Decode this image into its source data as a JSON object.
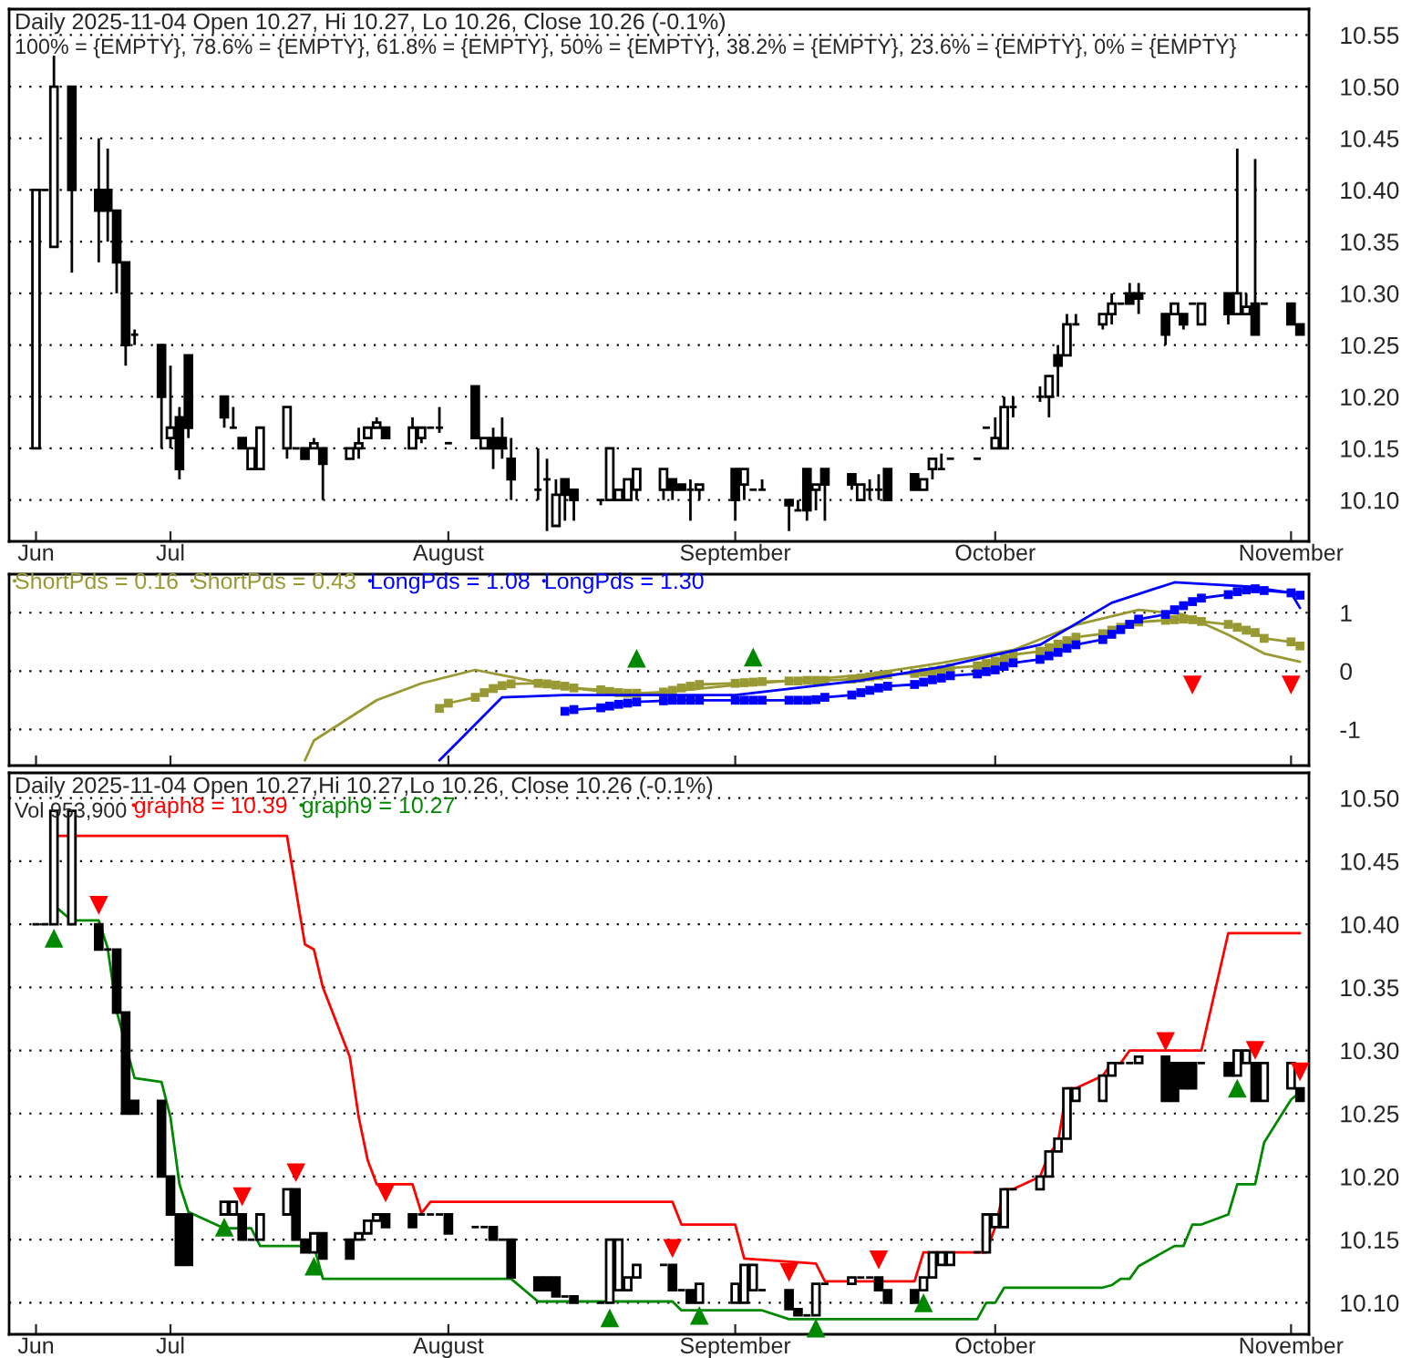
{
  "chart_data": [
    {
      "type": "candlestick",
      "title": "Daily 2025-11-04 Open 10.27, Hi 10.27, Lo 10.26, Close 10.26 (-0.1%)",
      "annotations": [
        "100% = {EMPTY}, 78.6% = {EMPTY}, 61.8% = {EMPTY}, 50% = {EMPTY}, 38.2% = {EMPTY}, 23.6% = {EMPTY}, 0% = {EMPTY}"
      ],
      "x": [
        "2025-06-16",
        "2025-06-17",
        "2025-06-18",
        "2025-06-20",
        "2025-06-23",
        "2025-06-24",
        "2025-06-25",
        "2025-06-26",
        "2025-06-27",
        "2025-06-30",
        "2025-07-01",
        "2025-07-02",
        "2025-07-03",
        "2025-07-07",
        "2025-07-08",
        "2025-07-09",
        "2025-07-10",
        "2025-07-11",
        "2025-07-14",
        "2025-07-15",
        "2025-07-16",
        "2025-07-17",
        "2025-07-18",
        "2025-07-21",
        "2025-07-22",
        "2025-07-23",
        "2025-07-24",
        "2025-07-25",
        "2025-07-28",
        "2025-07-29",
        "2025-07-30",
        "2025-07-31",
        "2025-08-01",
        "2025-08-04",
        "2025-08-05",
        "2025-08-06",
        "2025-08-07",
        "2025-08-08",
        "2025-08-11",
        "2025-08-12",
        "2025-08-13",
        "2025-08-14",
        "2025-08-15",
        "2025-08-18",
        "2025-08-19",
        "2025-08-20",
        "2025-08-21",
        "2025-08-22",
        "2025-08-25",
        "2025-08-26",
        "2025-08-27",
        "2025-08-28",
        "2025-08-29",
        "2025-09-02",
        "2025-09-03",
        "2025-09-04",
        "2025-09-05",
        "2025-09-08",
        "2025-09-09",
        "2025-09-10",
        "2025-09-11",
        "2025-09-12",
        "2025-09-15",
        "2025-09-16",
        "2025-09-17",
        "2025-09-18",
        "2025-09-19",
        "2025-09-22",
        "2025-09-23",
        "2025-09-24",
        "2025-09-25",
        "2025-09-26",
        "2025-09-29",
        "2025-09-30",
        "2025-10-01",
        "2025-10-02",
        "2025-10-03",
        "2025-10-06",
        "2025-10-07",
        "2025-10-08",
        "2025-10-09",
        "2025-10-10",
        "2025-10-13",
        "2025-10-14",
        "2025-10-15",
        "2025-10-16",
        "2025-10-17",
        "2025-10-20",
        "2025-10-21",
        "2025-10-22",
        "2025-10-23",
        "2025-10-24",
        "2025-10-27",
        "2025-10-28",
        "2025-10-29",
        "2025-10-30",
        "2025-10-31",
        "2025-11-03",
        "2025-11-04"
      ],
      "ohlc": [
        [
          10.15,
          10.4,
          10.15,
          10.4
        ],
        [
          10.4,
          10.4,
          10.4,
          10.4
        ],
        [
          10.345,
          10.53,
          10.345,
          10.5
        ],
        [
          10.5,
          10.5,
          10.32,
          10.4
        ],
        [
          10.4,
          10.45,
          10.33,
          10.38
        ],
        [
          10.4,
          10.44,
          10.35,
          10.38
        ],
        [
          10.38,
          10.38,
          10.3,
          10.33
        ],
        [
          10.33,
          10.33,
          10.23,
          10.25
        ],
        [
          10.26,
          10.265,
          10.25,
          10.26
        ],
        [
          10.25,
          10.25,
          10.15,
          10.2
        ],
        [
          10.16,
          10.23,
          10.15,
          10.17
        ],
        [
          10.18,
          10.19,
          10.12,
          10.13
        ],
        [
          10.24,
          10.24,
          10.16,
          10.17
        ],
        [
          10.2,
          10.2,
          10.17,
          10.18
        ],
        [
          10.17,
          10.19,
          10.17,
          10.17
        ],
        [
          10.16,
          10.16,
          10.15,
          10.15
        ],
        [
          10.13,
          10.15,
          10.13,
          10.15
        ],
        [
          10.13,
          10.17,
          10.13,
          10.17
        ],
        [
          10.15,
          10.19,
          10.14,
          10.19
        ],
        [
          10.15,
          10.15,
          10.15,
          10.15
        ],
        [
          10.15,
          10.15,
          10.14,
          10.14
        ],
        [
          10.15,
          10.16,
          10.15,
          10.155
        ],
        [
          10.15,
          10.15,
          10.1,
          10.135
        ],
        [
          10.14,
          10.15,
          10.14,
          10.15
        ],
        [
          10.15,
          10.17,
          10.14,
          10.155
        ],
        [
          10.16,
          10.17,
          10.16,
          10.17
        ],
        [
          10.17,
          10.18,
          10.17,
          10.175
        ],
        [
          10.17,
          10.17,
          10.16,
          10.16
        ],
        [
          10.15,
          10.18,
          10.15,
          10.17
        ],
        [
          10.16,
          10.17,
          10.155,
          10.17
        ],
        [
          10.17,
          10.17,
          10.17,
          10.17
        ],
        [
          10.17,
          10.19,
          10.165,
          10.17
        ],
        [
          10.155,
          10.155,
          10.155,
          10.155
        ],
        [
          10.21,
          10.21,
          10.16,
          10.16
        ],
        [
          10.15,
          10.16,
          10.15,
          10.16
        ],
        [
          10.16,
          10.17,
          10.13,
          10.15
        ],
        [
          10.16,
          10.18,
          10.14,
          10.15
        ],
        [
          10.14,
          10.16,
          10.1,
          10.12
        ],
        [
          10.11,
          10.15,
          10.1,
          10.11
        ],
        [
          10.12,
          10.14,
          10.07,
          10.12
        ],
        [
          10.075,
          10.12,
          10.075,
          10.105
        ],
        [
          10.12,
          10.12,
          10.08,
          10.105
        ],
        [
          10.11,
          10.11,
          10.08,
          10.1
        ],
        [
          10.1,
          10.1,
          10.095,
          10.1
        ],
        [
          10.1,
          10.15,
          10.1,
          10.15
        ],
        [
          10.1,
          10.11,
          10.1,
          10.11
        ],
        [
          10.1,
          10.12,
          10.1,
          10.12
        ],
        [
          10.11,
          10.13,
          10.1,
          10.13
        ],
        [
          10.11,
          10.13,
          10.1,
          10.13
        ],
        [
          10.12,
          10.12,
          10.1,
          10.11
        ],
        [
          10.115,
          10.115,
          10.11,
          10.11
        ],
        [
          10.11,
          10.12,
          10.08,
          10.11
        ],
        [
          10.11,
          10.115,
          10.1,
          10.115
        ],
        [
          10.13,
          10.13,
          10.08,
          10.1
        ],
        [
          10.115,
          10.13,
          10.1,
          10.13
        ],
        [
          10.11,
          10.11,
          10.11,
          10.11
        ],
        [
          10.11,
          10.12,
          10.11,
          10.11
        ],
        [
          10.1,
          10.1,
          10.07,
          10.095
        ],
        [
          10.09,
          10.1,
          10.09,
          10.09
        ],
        [
          10.13,
          10.13,
          10.08,
          10.09
        ],
        [
          10.11,
          10.115,
          10.09,
          10.115
        ],
        [
          10.13,
          10.13,
          10.08,
          10.115
        ],
        [
          10.125,
          10.125,
          10.11,
          10.115
        ],
        [
          10.1,
          10.115,
          10.1,
          10.115
        ],
        [
          10.11,
          10.12,
          10.1,
          10.11
        ],
        [
          10.11,
          10.125,
          10.1,
          10.11
        ],
        [
          10.13,
          10.13,
          10.1,
          10.1
        ],
        [
          10.125,
          10.125,
          10.11,
          10.11
        ],
        [
          10.11,
          10.12,
          10.11,
          10.12
        ],
        [
          10.13,
          10.14,
          10.12,
          10.14
        ],
        [
          10.13,
          10.145,
          10.13,
          10.13
        ],
        [
          10.14,
          10.14,
          10.14,
          10.14
        ],
        [
          10.14,
          10.14,
          10.14,
          10.14
        ],
        [
          10.17,
          10.17,
          10.17,
          10.17
        ],
        [
          10.15,
          10.18,
          10.15,
          10.16
        ],
        [
          10.15,
          10.2,
          10.15,
          10.19
        ],
        [
          10.19,
          10.2,
          10.18,
          10.19
        ],
        [
          10.2,
          10.21,
          10.195,
          10.2
        ],
        [
          10.2,
          10.22,
          10.18,
          10.22
        ],
        [
          10.24,
          10.25,
          10.2,
          10.23
        ],
        [
          10.24,
          10.28,
          10.24,
          10.27
        ],
        [
          10.27,
          10.28,
          10.27,
          10.27
        ],
        [
          10.27,
          10.28,
          10.265,
          10.28
        ],
        [
          10.28,
          10.3,
          10.27,
          10.29
        ],
        [
          10.29,
          10.29,
          10.29,
          10.29
        ],
        [
          10.3,
          10.31,
          10.29,
          10.29
        ],
        [
          10.3,
          10.31,
          10.28,
          10.295
        ],
        [
          10.28,
          10.28,
          10.25,
          10.26
        ],
        [
          10.28,
          10.29,
          10.28,
          10.29
        ],
        [
          10.28,
          10.28,
          10.265,
          10.27
        ],
        [
          10.29,
          10.29,
          10.29,
          10.29
        ],
        [
          10.27,
          10.29,
          10.27,
          10.29
        ],
        [
          10.3,
          10.3,
          10.27,
          10.28
        ],
        [
          10.28,
          10.44,
          10.28,
          10.3
        ],
        [
          10.28,
          10.3,
          10.28,
          10.287
        ],
        [
          10.29,
          10.43,
          10.26,
          10.26
        ],
        [
          10.29,
          10.29,
          10.29,
          10.29
        ],
        [
          10.29,
          10.29,
          10.27,
          10.27
        ],
        [
          10.27,
          10.27,
          10.26,
          10.26
        ]
      ],
      "xlim": [
        "2025-06-13",
        "2025-11-05"
      ],
      "xticks": [
        {
          "value": "2025-06-16",
          "label": "Jun"
        },
        {
          "value": "2025-07-01",
          "label": "Jul"
        },
        {
          "value": "2025-08-01",
          "label": "August"
        },
        {
          "value": "2025-09-02",
          "label": "September"
        },
        {
          "value": "2025-10-01",
          "label": "October"
        },
        {
          "value": "2025-11-03",
          "label": "November"
        }
      ],
      "ylim": [
        10.06,
        10.575
      ],
      "yticks": [
        {
          "value": 10.1,
          "label": "10.10"
        },
        {
          "value": 10.15,
          "label": "10.15"
        },
        {
          "value": 10.2,
          "label": "10.20"
        },
        {
          "value": 10.25,
          "label": "10.25"
        },
        {
          "value": 10.3,
          "label": "10.30"
        },
        {
          "value": 10.35,
          "label": "10.35"
        },
        {
          "value": 10.4,
          "label": "10.40"
        },
        {
          "value": 10.45,
          "label": "10.45"
        },
        {
          "value": 10.5,
          "label": "10.50"
        },
        {
          "value": 10.55,
          "label": "10.55"
        }
      ],
      "grid": "y"
    },
    {
      "type": "line",
      "legend": "top left",
      "tick_labels": "y",
      "series": [
        {
          "name": "ShortPds = 0.16",
          "color": "#999933",
          "marker": "none",
          "x": [
            "2025-07-16",
            "2025-07-17",
            "2025-07-24",
            "2025-07-29",
            "2025-08-04",
            "2025-08-07",
            "2025-08-14",
            "2025-08-22",
            "2025-09-02",
            "2025-09-16",
            "2025-09-25",
            "2025-10-03",
            "2025-10-10",
            "2025-10-17",
            "2025-10-22",
            "2025-10-27",
            "2025-10-31",
            "2025-11-04"
          ],
          "values": [
            -1.53,
            -1.19,
            -0.5,
            -0.21,
            0.02,
            -0.07,
            -0.28,
            -0.41,
            -0.24,
            -0.07,
            0.14,
            0.36,
            0.79,
            1.05,
            0.97,
            0.62,
            0.3,
            0.16
          ]
        },
        {
          "name": "ShortPds = 0.43",
          "color": "#999933",
          "marker": "square",
          "x": [
            "2025-07-31",
            "2025-08-01",
            "2025-08-04",
            "2025-08-05",
            "2025-08-06",
            "2025-08-07",
            "2025-08-08",
            "2025-08-11",
            "2025-08-12",
            "2025-08-13",
            "2025-08-14",
            "2025-08-15",
            "2025-08-18",
            "2025-08-19",
            "2025-08-20",
            "2025-08-21",
            "2025-08-22",
            "2025-08-25",
            "2025-08-26",
            "2025-08-27",
            "2025-08-28",
            "2025-08-29",
            "2025-09-02",
            "2025-09-03",
            "2025-09-04",
            "2025-09-05",
            "2025-09-08",
            "2025-09-09",
            "2025-09-10",
            "2025-09-11",
            "2025-09-12",
            "2025-09-15",
            "2025-09-16",
            "2025-09-17",
            "2025-09-18",
            "2025-09-19",
            "2025-09-22",
            "2025-09-23",
            "2025-09-24",
            "2025-09-25",
            "2025-09-26",
            "2025-09-29",
            "2025-09-30",
            "2025-10-01",
            "2025-10-02",
            "2025-10-03",
            "2025-10-06",
            "2025-10-07",
            "2025-10-08",
            "2025-10-09",
            "2025-10-10",
            "2025-10-13",
            "2025-10-14",
            "2025-10-15",
            "2025-10-16",
            "2025-10-17",
            "2025-10-20",
            "2025-10-21",
            "2025-10-22",
            "2025-10-23",
            "2025-10-24",
            "2025-10-27",
            "2025-10-28",
            "2025-10-29",
            "2025-10-30",
            "2025-10-31",
            "2025-11-03",
            "2025-11-04"
          ],
          "values": [
            -0.64,
            -0.55,
            -0.45,
            -0.37,
            -0.3,
            -0.25,
            -0.22,
            -0.21,
            -0.22,
            -0.24,
            -0.26,
            -0.29,
            -0.32,
            -0.35,
            -0.37,
            -0.38,
            -0.38,
            -0.36,
            -0.33,
            -0.29,
            -0.26,
            -0.23,
            -0.21,
            -0.2,
            -0.19,
            -0.18,
            -0.17,
            -0.17,
            -0.16,
            -0.16,
            -0.16,
            -0.14,
            -0.12,
            -0.1,
            -0.08,
            -0.06,
            -0.04,
            -0.02,
            0.0,
            0.02,
            0.05,
            0.09,
            0.13,
            0.17,
            0.22,
            0.28,
            0.34,
            0.4,
            0.46,
            0.52,
            0.58,
            0.64,
            0.7,
            0.75,
            0.8,
            0.84,
            0.87,
            0.88,
            0.89,
            0.88,
            0.85,
            0.8,
            0.75,
            0.7,
            0.66,
            0.56,
            0.5,
            0.43
          ]
        },
        {
          "name": "LongPds = 1.08",
          "color": "#0000ff",
          "marker": "none",
          "x": [
            "2025-07-31",
            "2025-08-07",
            "2025-08-14",
            "2025-09-02",
            "2025-09-16",
            "2025-09-25",
            "2025-10-06",
            "2025-10-14",
            "2025-10-21",
            "2025-10-29",
            "2025-11-03",
            "2025-11-04"
          ],
          "values": [
            -1.53,
            -0.45,
            -0.41,
            -0.41,
            -0.16,
            0.07,
            0.45,
            1.17,
            1.52,
            1.45,
            1.34,
            1.08
          ]
        },
        {
          "name": "LongPds = 1.30",
          "color": "#0000ff",
          "marker": "square",
          "x": [
            "2025-08-14",
            "2025-08-15",
            "2025-08-18",
            "2025-08-19",
            "2025-08-20",
            "2025-08-21",
            "2025-08-22",
            "2025-08-25",
            "2025-08-26",
            "2025-08-27",
            "2025-08-28",
            "2025-08-29",
            "2025-09-02",
            "2025-09-03",
            "2025-09-04",
            "2025-09-05",
            "2025-09-08",
            "2025-09-09",
            "2025-09-10",
            "2025-09-11",
            "2025-09-12",
            "2025-09-15",
            "2025-09-16",
            "2025-09-17",
            "2025-09-18",
            "2025-09-19",
            "2025-09-22",
            "2025-09-23",
            "2025-09-24",
            "2025-09-25",
            "2025-09-26",
            "2025-09-29",
            "2025-09-30",
            "2025-10-01",
            "2025-10-02",
            "2025-10-03",
            "2025-10-06",
            "2025-10-07",
            "2025-10-08",
            "2025-10-09",
            "2025-10-10",
            "2025-10-13",
            "2025-10-14",
            "2025-10-15",
            "2025-10-16",
            "2025-10-17",
            "2025-10-20",
            "2025-10-21",
            "2025-10-22",
            "2025-10-23",
            "2025-10-24",
            "2025-10-27",
            "2025-10-28",
            "2025-10-29",
            "2025-10-30",
            "2025-10-31",
            "2025-11-03",
            "2025-11-04"
          ],
          "values": [
            -0.69,
            -0.66,
            -0.63,
            -0.6,
            -0.57,
            -0.55,
            -0.53,
            -0.51,
            -0.5,
            -0.5,
            -0.5,
            -0.5,
            -0.5,
            -0.5,
            -0.5,
            -0.5,
            -0.5,
            -0.5,
            -0.5,
            -0.49,
            -0.45,
            -0.41,
            -0.37,
            -0.33,
            -0.29,
            -0.26,
            -0.23,
            -0.19,
            -0.15,
            -0.12,
            -0.08,
            -0.05,
            -0.01,
            0.02,
            0.08,
            0.14,
            0.2,
            0.26,
            0.32,
            0.39,
            0.45,
            0.54,
            0.63,
            0.71,
            0.8,
            0.89,
            0.97,
            1.05,
            1.12,
            1.19,
            1.25,
            1.31,
            1.36,
            1.39,
            1.41,
            1.38,
            1.34,
            1.3
          ]
        },
        {
          "type": "scatter",
          "color": "#008800",
          "marker": "triangle",
          "x": [
            "2025-08-22",
            "2025-09-04"
          ],
          "values": [
            0.22,
            0.24
          ]
        },
        {
          "type": "scatter",
          "color": "#ff0000",
          "marker": "triangle_down",
          "x": [
            "2025-10-23",
            "2025-11-03"
          ],
          "values": [
            -0.24,
            -0.24
          ]
        }
      ],
      "xlim": [
        "2025-06-13",
        "2025-11-05"
      ],
      "xticks": [
        {
          "value": "2025-06-16",
          "label": null
        },
        {
          "value": "2025-07-01",
          "label": null
        },
        {
          "value": "2025-08-01",
          "label": null
        },
        {
          "value": "2025-09-02",
          "label": null
        },
        {
          "value": "2025-10-01",
          "label": null
        },
        {
          "value": "2025-11-03",
          "label": null
        }
      ],
      "ylim": [
        -1.62,
        1.66
      ],
      "yticks": [
        -1,
        0,
        1
      ],
      "grid": "y"
    },
    {
      "type": "candlestick",
      "title": "Daily 2025-11-04 Open 10.27,Hi 10.27,Lo 10.26, Close 10.26 (-0.1%)",
      "annotations": [
        "Vol 953,900"
      ],
      "legend": "top left",
      "x": [
        "2025-06-16",
        "2025-06-17",
        "2025-06-18",
        "2025-06-20",
        "2025-06-23",
        "2025-06-24",
        "2025-06-25",
        "2025-06-26",
        "2025-06-27",
        "2025-06-30",
        "2025-07-01",
        "2025-07-02",
        "2025-07-03",
        "2025-07-07",
        "2025-07-08",
        "2025-07-09",
        "2025-07-10",
        "2025-07-11",
        "2025-07-14",
        "2025-07-15",
        "2025-07-16",
        "2025-07-17",
        "2025-07-18",
        "2025-07-21",
        "2025-07-22",
        "2025-07-23",
        "2025-07-24",
        "2025-07-25",
        "2025-07-28",
        "2025-07-29",
        "2025-07-30",
        "2025-07-31",
        "2025-08-01",
        "2025-08-04",
        "2025-08-05",
        "2025-08-06",
        "2025-08-07",
        "2025-08-08",
        "2025-08-11",
        "2025-08-12",
        "2025-08-13",
        "2025-08-14",
        "2025-08-15",
        "2025-08-18",
        "2025-08-19",
        "2025-08-20",
        "2025-08-21",
        "2025-08-22",
        "2025-08-25",
        "2025-08-26",
        "2025-08-27",
        "2025-08-28",
        "2025-08-29",
        "2025-09-02",
        "2025-09-03",
        "2025-09-04",
        "2025-09-05",
        "2025-09-08",
        "2025-09-09",
        "2025-09-10",
        "2025-09-11",
        "2025-09-12",
        "2025-09-15",
        "2025-09-16",
        "2025-09-17",
        "2025-09-18",
        "2025-09-19",
        "2025-09-22",
        "2025-09-23",
        "2025-09-24",
        "2025-09-25",
        "2025-09-26",
        "2025-09-29",
        "2025-09-30",
        "2025-10-01",
        "2025-10-02",
        "2025-10-03",
        "2025-10-06",
        "2025-10-07",
        "2025-10-08",
        "2025-10-09",
        "2025-10-10",
        "2025-10-13",
        "2025-10-14",
        "2025-10-15",
        "2025-10-16",
        "2025-10-17",
        "2025-10-20",
        "2025-10-21",
        "2025-10-22",
        "2025-10-23",
        "2025-10-24",
        "2025-10-27",
        "2025-10-28",
        "2025-10-29",
        "2025-10-30",
        "2025-10-31",
        "2025-11-03",
        "2025-11-04"
      ],
      "ohlc": [
        [
          10.4,
          10.4,
          10.4,
          10.4
        ],
        [
          10.4,
          10.4,
          10.4,
          10.4
        ],
        [
          10.4,
          10.49,
          10.4,
          10.49
        ],
        [
          10.4,
          10.49,
          10.4,
          10.49
        ],
        [
          10.4,
          10.4,
          10.38,
          10.38
        ],
        [
          10.38,
          10.38,
          10.38,
          10.38
        ],
        [
          10.38,
          10.38,
          10.33,
          10.33
        ],
        [
          10.33,
          10.33,
          10.25,
          10.25
        ],
        [
          10.26,
          10.26,
          10.25,
          10.25
        ],
        [
          10.26,
          10.26,
          10.2,
          10.2
        ],
        [
          10.2,
          10.2,
          10.17,
          10.17
        ],
        [
          10.17,
          10.17,
          10.13,
          10.13
        ],
        [
          10.17,
          10.17,
          10.13,
          10.13
        ],
        [
          10.17,
          10.18,
          10.17,
          10.18
        ],
        [
          10.17,
          10.18,
          10.17,
          10.18
        ],
        [
          10.17,
          10.17,
          10.15,
          10.15
        ],
        [
          10.15,
          10.15,
          10.15,
          10.15
        ],
        [
          10.15,
          10.17,
          10.15,
          10.17
        ],
        [
          10.17,
          10.19,
          10.17,
          10.19
        ],
        [
          10.19,
          10.19,
          10.15,
          10.15
        ],
        [
          10.15,
          10.15,
          10.14,
          10.14
        ],
        [
          10.14,
          10.155,
          10.14,
          10.155
        ],
        [
          10.155,
          10.155,
          10.135,
          10.135
        ],
        [
          10.15,
          10.15,
          10.135,
          10.135
        ],
        [
          10.15,
          10.155,
          10.15,
          10.155
        ],
        [
          10.155,
          10.165,
          10.155,
          10.165
        ],
        [
          10.165,
          10.17,
          10.165,
          10.17
        ],
        [
          10.17,
          10.17,
          10.16,
          10.16
        ],
        [
          10.17,
          10.17,
          10.16,
          10.16
        ],
        [
          10.17,
          10.17,
          10.17,
          10.17
        ],
        [
          10.17,
          10.17,
          10.17,
          10.17
        ],
        [
          10.17,
          10.17,
          10.17,
          10.17
        ],
        [
          10.17,
          10.17,
          10.155,
          10.155
        ],
        [
          10.16,
          10.16,
          10.16,
          10.16
        ],
        [
          10.16,
          10.16,
          10.16,
          10.16
        ],
        [
          10.16,
          10.16,
          10.15,
          10.15
        ],
        [
          10.15,
          10.15,
          10.15,
          10.15
        ],
        [
          10.15,
          10.15,
          10.12,
          10.12
        ],
        [
          10.12,
          10.12,
          10.11,
          10.11
        ],
        [
          10.12,
          10.12,
          10.11,
          10.11
        ],
        [
          10.12,
          10.12,
          10.105,
          10.105
        ],
        [
          10.105,
          10.105,
          10.105,
          10.105
        ],
        [
          10.105,
          10.105,
          10.1,
          10.1
        ],
        [
          10.1,
          10.1,
          10.1,
          10.1
        ],
        [
          10.1,
          10.15,
          10.1,
          10.15
        ],
        [
          10.11,
          10.15,
          10.11,
          10.15
        ],
        [
          10.11,
          10.12,
          10.11,
          10.12
        ],
        [
          10.12,
          10.13,
          10.12,
          10.13
        ],
        [
          10.13,
          10.13,
          10.13,
          10.13
        ],
        [
          10.13,
          10.13,
          10.11,
          10.11
        ],
        [
          10.11,
          10.11,
          10.11,
          10.11
        ],
        [
          10.11,
          10.11,
          10.1,
          10.1
        ],
        [
          10.1,
          10.115,
          10.1,
          10.115
        ],
        [
          10.1,
          10.115,
          10.1,
          10.115
        ],
        [
          10.1,
          10.13,
          10.1,
          10.13
        ],
        [
          10.11,
          10.13,
          10.11,
          10.13
        ],
        [
          10.11,
          10.11,
          10.11,
          10.11
        ],
        [
          10.11,
          10.11,
          10.095,
          10.095
        ],
        [
          10.095,
          10.095,
          10.09,
          10.09
        ],
        [
          10.09,
          10.09,
          10.09,
          10.09
        ],
        [
          10.09,
          10.115,
          10.09,
          10.115
        ],
        [
          10.115,
          10.115,
          10.115,
          10.115
        ],
        [
          10.115,
          10.12,
          10.115,
          10.12
        ],
        [
          10.12,
          10.12,
          10.12,
          10.12
        ],
        [
          10.12,
          10.12,
          10.12,
          10.12
        ],
        [
          10.12,
          10.12,
          10.11,
          10.11
        ],
        [
          10.11,
          10.11,
          10.1,
          10.1
        ],
        [
          10.11,
          10.11,
          10.1,
          10.1
        ],
        [
          10.11,
          10.12,
          10.11,
          10.12
        ],
        [
          10.12,
          10.14,
          10.12,
          10.14
        ],
        [
          10.13,
          10.14,
          10.13,
          10.14
        ],
        [
          10.13,
          10.14,
          10.13,
          10.14
        ],
        [
          10.14,
          10.14,
          10.14,
          10.14
        ],
        [
          10.14,
          10.17,
          10.14,
          10.17
        ],
        [
          10.16,
          10.17,
          10.16,
          10.17
        ],
        [
          10.16,
          10.19,
          10.16,
          10.19
        ],
        [
          10.19,
          10.19,
          10.19,
          10.19
        ],
        [
          10.19,
          10.2,
          10.19,
          10.2
        ],
        [
          10.2,
          10.22,
          10.2,
          10.22
        ],
        [
          10.22,
          10.23,
          10.22,
          10.23
        ],
        [
          10.23,
          10.27,
          10.23,
          10.27
        ],
        [
          10.26,
          10.27,
          10.26,
          10.27
        ],
        [
          10.26,
          10.28,
          10.26,
          10.28
        ],
        [
          10.28,
          10.29,
          10.28,
          10.29
        ],
        [
          10.29,
          10.29,
          10.29,
          10.29
        ],
        [
          10.29,
          10.29,
          10.29,
          10.29
        ],
        [
          10.29,
          10.295,
          10.29,
          10.295
        ],
        [
          10.295,
          10.295,
          10.26,
          10.26
        ],
        [
          10.29,
          10.29,
          10.26,
          10.26
        ],
        [
          10.29,
          10.29,
          10.27,
          10.27
        ],
        [
          10.29,
          10.29,
          10.27,
          10.27
        ],
        [
          10.29,
          10.29,
          10.29,
          10.29
        ],
        [
          10.29,
          10.29,
          10.28,
          10.28
        ],
        [
          10.28,
          10.3,
          10.28,
          10.3
        ],
        [
          10.29,
          10.3,
          10.29,
          10.3
        ],
        [
          10.29,
          10.29,
          10.26,
          10.26
        ],
        [
          10.26,
          10.29,
          10.26,
          10.29
        ],
        [
          10.27,
          10.29,
          10.27,
          10.29
        ],
        [
          10.27,
          10.27,
          10.26,
          10.26
        ]
      ],
      "series": [
        {
          "name": "graph8 = 10.39",
          "type": "line",
          "color": "#ff0000",
          "x": [
            "2025-06-18",
            "2025-07-14",
            "2025-07-16",
            "2025-07-17",
            "2025-07-18",
            "2025-07-21",
            "2025-07-22",
            "2025-07-23",
            "2025-07-24",
            "2025-07-28",
            "2025-07-29",
            "2025-07-30",
            "2025-08-26",
            "2025-08-27",
            "2025-09-02",
            "2025-09-03",
            "2025-09-11",
            "2025-09-12",
            "2025-09-22",
            "2025-09-23",
            "2025-09-30",
            "2025-10-01",
            "2025-10-02",
            "2025-10-03",
            "2025-10-06",
            "2025-10-07",
            "2025-10-08",
            "2025-10-09",
            "2025-10-10",
            "2025-10-13",
            "2025-10-14",
            "2025-10-15",
            "2025-10-16",
            "2025-10-24",
            "2025-10-27",
            "2025-11-04"
          ],
          "values": [
            10.47,
            10.47,
            10.384,
            10.38,
            10.35,
            10.295,
            10.247,
            10.213,
            10.194,
            10.194,
            10.171,
            10.18,
            10.18,
            10.162,
            10.162,
            10.135,
            10.131,
            10.117,
            10.117,
            10.14,
            10.14,
            10.16,
            10.19,
            10.19,
            10.2,
            10.218,
            10.227,
            10.27,
            10.27,
            10.28,
            10.29,
            10.29,
            10.3,
            10.3,
            10.393,
            10.393
          ]
        },
        {
          "name": "graph9 = 10.27",
          "type": "line",
          "color": "#008800",
          "x": [
            "2025-06-18",
            "2025-06-20",
            "2025-06-23",
            "2025-06-24",
            "2025-06-25",
            "2025-06-27",
            "2025-06-30",
            "2025-07-01",
            "2025-07-02",
            "2025-07-03",
            "2025-07-07",
            "2025-07-10",
            "2025-07-11",
            "2025-07-17",
            "2025-07-18",
            "2025-08-08",
            "2025-08-11",
            "2025-08-26",
            "2025-08-27",
            "2025-09-05",
            "2025-09-08",
            "2025-09-29",
            "2025-09-30",
            "2025-10-01",
            "2025-10-02",
            "2025-10-13",
            "2025-10-14",
            "2025-10-15",
            "2025-10-16",
            "2025-10-17",
            "2025-10-20",
            "2025-10-21",
            "2025-10-22",
            "2025-10-23",
            "2025-10-24",
            "2025-10-27",
            "2025-10-28",
            "2025-10-30",
            "2025-10-31",
            "2025-11-03",
            "2025-11-04"
          ],
          "values": [
            10.415,
            10.403,
            10.403,
            10.381,
            10.331,
            10.278,
            10.275,
            10.247,
            10.194,
            10.172,
            10.159,
            10.159,
            10.145,
            10.145,
            10.119,
            10.119,
            10.101,
            10.101,
            10.094,
            10.094,
            10.087,
            10.087,
            10.1,
            10.1,
            10.112,
            10.112,
            10.114,
            10.119,
            10.119,
            10.129,
            10.141,
            10.145,
            10.145,
            10.162,
            10.162,
            10.17,
            10.194,
            10.194,
            10.227,
            10.261,
            10.267
          ]
        },
        {
          "type": "scatter",
          "color": "#ff0000",
          "marker": "triangle_down",
          "x": [
            "2025-06-23",
            "2025-07-09",
            "2025-07-15",
            "2025-07-25",
            "2025-08-26",
            "2025-09-08",
            "2025-09-18",
            "2025-10-20",
            "2025-10-30",
            "2025-11-04"
          ],
          "values": [
            10.415,
            10.184,
            10.203,
            10.187,
            10.143,
            10.124,
            10.134,
            10.307,
            10.3,
            10.283
          ]
        },
        {
          "type": "scatter",
          "color": "#008800",
          "marker": "triangle",
          "x": [
            "2025-06-18",
            "2025-07-07",
            "2025-07-17",
            "2025-08-19",
            "2025-08-29",
            "2025-09-11",
            "2025-09-23",
            "2025-10-28"
          ],
          "values": [
            10.389,
            10.16,
            10.129,
            10.088,
            10.09,
            10.08,
            10.1,
            10.27
          ]
        }
      ],
      "xlim": [
        "2025-06-13",
        "2025-11-05"
      ],
      "xticks": [
        {
          "value": "2025-06-16",
          "label": "Jun"
        },
        {
          "value": "2025-07-01",
          "label": "Jul"
        },
        {
          "value": "2025-08-01",
          "label": "August"
        },
        {
          "value": "2025-09-02",
          "label": "September"
        },
        {
          "value": "2025-10-01",
          "label": "October"
        },
        {
          "value": "2025-11-03",
          "label": "November"
        }
      ],
      "ylim": [
        10.075,
        10.52
      ],
      "yticks": [
        {
          "value": 10.1,
          "label": "10.10"
        },
        {
          "value": 10.15,
          "label": "10.15"
        },
        {
          "value": 10.2,
          "label": "10.20"
        },
        {
          "value": 10.25,
          "label": "10.25"
        },
        {
          "value": 10.3,
          "label": "10.30"
        },
        {
          "value": 10.35,
          "label": "10.35"
        },
        {
          "value": 10.4,
          "label": "10.40"
        },
        {
          "value": 10.45,
          "label": "10.45"
        },
        {
          "value": 10.5,
          "label": "10.50"
        }
      ],
      "grid": "y"
    }
  ]
}
